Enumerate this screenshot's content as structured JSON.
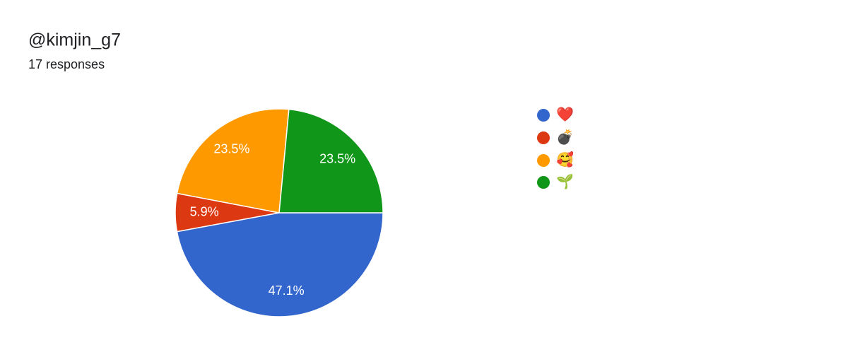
{
  "chart_data": {
    "type": "pie",
    "title": "@kimjin_g7",
    "subtitle": "17 responses",
    "categories": [
      "❤️",
      "💣",
      "🥰",
      "🌱"
    ],
    "values": [
      47.1,
      5.9,
      23.5,
      23.5
    ],
    "value_labels": [
      "47.1%",
      "5.9%",
      "23.5%",
      "23.5%"
    ],
    "colors": [
      "#3366cc",
      "#dc3912",
      "#ff9900",
      "#109618"
    ],
    "legend": "right"
  }
}
